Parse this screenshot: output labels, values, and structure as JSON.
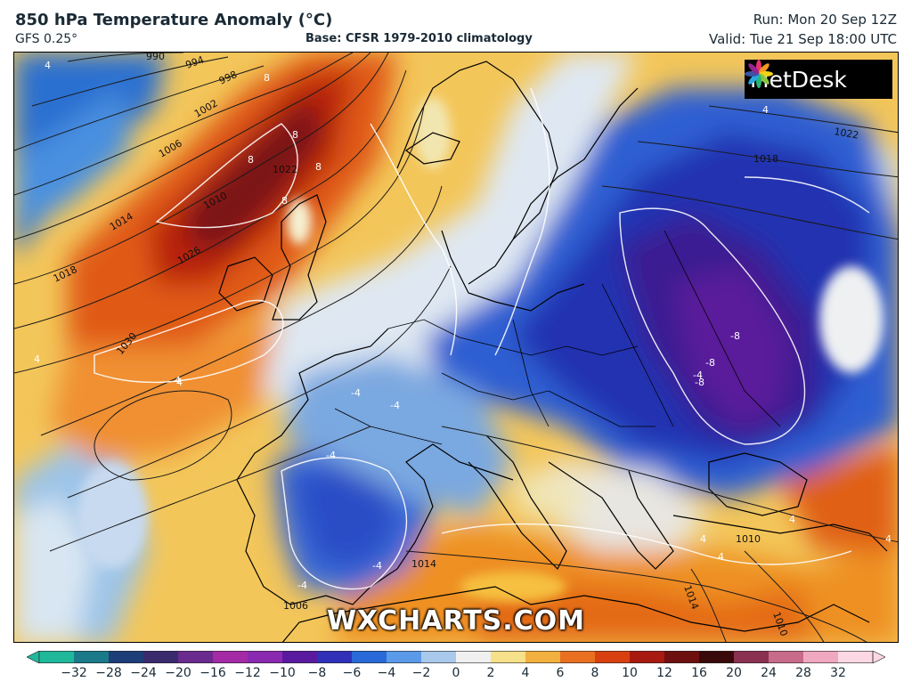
{
  "header": {
    "title": "850 hPa Temperature Anomaly (°C)",
    "model": "GFS 0.25°",
    "base": "Base: CFSR 1979-2010 climatology",
    "run": "Run: Mon 20 Sep 12Z",
    "valid": "Valid: Tue 21 Sep 18:00 UTC"
  },
  "logo": {
    "text": "MetDesk"
  },
  "watermark": "WXCHARTS.COM",
  "map": {
    "isobar_labels": [
      "990",
      "994",
      "998",
      "1002",
      "1006",
      "1010",
      "1014",
      "1018",
      "1022",
      "1026",
      "1030",
      "1022",
      "1018",
      "1014",
      "1014",
      "1010",
      "1010",
      "1006"
    ],
    "anomaly_labels": [
      "8",
      "8",
      "8",
      "8",
      "8",
      "4",
      "4",
      "4",
      "4",
      "4",
      "-4",
      "-4",
      "-4",
      "-4",
      "-4",
      "-4",
      "-8",
      "-8",
      "-8",
      "4",
      "4",
      "4",
      "4"
    ]
  },
  "colorbar": {
    "ticks": [
      "−32",
      "−28",
      "−24",
      "−20",
      "−16",
      "−12",
      "−10",
      "−8",
      "−6",
      "−4",
      "−2",
      "0",
      "2",
      "4",
      "6",
      "8",
      "10",
      "12",
      "16",
      "20",
      "24",
      "28",
      "32"
    ],
    "colors": [
      "#1fb89a",
      "#1a7a8a",
      "#1e3e7a",
      "#3a2a6e",
      "#6a2a8e",
      "#a42aa6",
      "#8a2ab0",
      "#5a1aa0",
      "#3030b8",
      "#2a6ad8",
      "#5a9ae8",
      "#a8c8ec",
      "#f0f0f0",
      "#f6e08a",
      "#f2b040",
      "#e87020",
      "#d84010",
      "#a81a10",
      "#6e1010",
      "#3a0a0a",
      "#8a3050",
      "#c86a8a",
      "#f0a8c0",
      "#fbd8e4"
    ]
  }
}
